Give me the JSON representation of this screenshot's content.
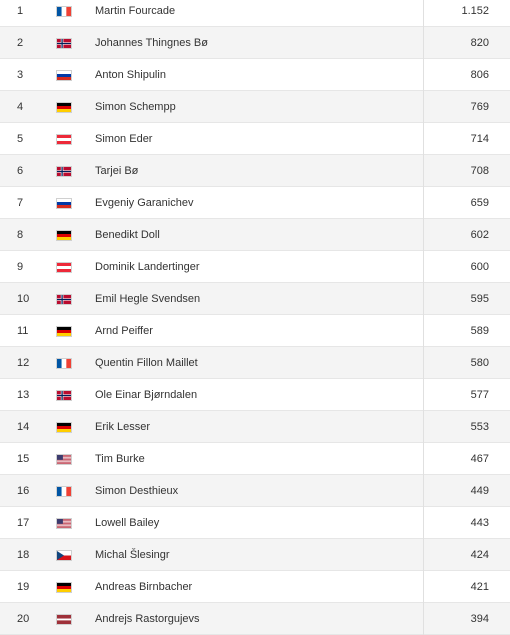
{
  "rows": [
    {
      "rank": "1",
      "country": "FRA",
      "name": "Martin Fourcade",
      "points": "1.152"
    },
    {
      "rank": "2",
      "country": "NOR",
      "name": "Johannes Thingnes Bø",
      "points": "820"
    },
    {
      "rank": "3",
      "country": "RUS",
      "name": "Anton Shipulin",
      "points": "806"
    },
    {
      "rank": "4",
      "country": "GER",
      "name": "Simon Schempp",
      "points": "769"
    },
    {
      "rank": "5",
      "country": "AUT",
      "name": "Simon Eder",
      "points": "714"
    },
    {
      "rank": "6",
      "country": "NOR",
      "name": "Tarjei Bø",
      "points": "708"
    },
    {
      "rank": "7",
      "country": "RUS",
      "name": "Evgeniy Garanichev",
      "points": "659"
    },
    {
      "rank": "8",
      "country": "GER",
      "name": "Benedikt Doll",
      "points": "602"
    },
    {
      "rank": "9",
      "country": "AUT",
      "name": "Dominik Landertinger",
      "points": "600"
    },
    {
      "rank": "10",
      "country": "NOR",
      "name": "Emil Hegle Svendsen",
      "points": "595"
    },
    {
      "rank": "11",
      "country": "GER",
      "name": "Arnd Peiffer",
      "points": "589"
    },
    {
      "rank": "12",
      "country": "FRA",
      "name": "Quentin Fillon Maillet",
      "points": "580"
    },
    {
      "rank": "13",
      "country": "NOR",
      "name": "Ole Einar Bjørndalen",
      "points": "577"
    },
    {
      "rank": "14",
      "country": "GER",
      "name": "Erik Lesser",
      "points": "553"
    },
    {
      "rank": "15",
      "country": "USA",
      "name": "Tim Burke",
      "points": "467"
    },
    {
      "rank": "16",
      "country": "FRA",
      "name": "Simon Desthieux",
      "points": "449"
    },
    {
      "rank": "17",
      "country": "USA",
      "name": "Lowell Bailey",
      "points": "443"
    },
    {
      "rank": "18",
      "country": "CZE",
      "name": "Michal Šlesingr",
      "points": "424"
    },
    {
      "rank": "19",
      "country": "GER",
      "name": "Andreas Birnbacher",
      "points": "421"
    },
    {
      "rank": "20",
      "country": "LAT",
      "name": "Andrejs Rastorgujevs",
      "points": "394"
    }
  ],
  "flag_icons": {
    "FRA": "france-flag-icon",
    "NOR": "norway-flag-icon",
    "RUS": "russia-flag-icon",
    "GER": "germany-flag-icon",
    "AUT": "austria-flag-icon",
    "USA": "usa-flag-icon",
    "CZE": "czech-flag-icon",
    "LAT": "latvia-flag-icon"
  },
  "colors": {
    "row_alt_bg": "#f4f4f4",
    "text": "#333333",
    "divider": "#e6e6e6"
  }
}
